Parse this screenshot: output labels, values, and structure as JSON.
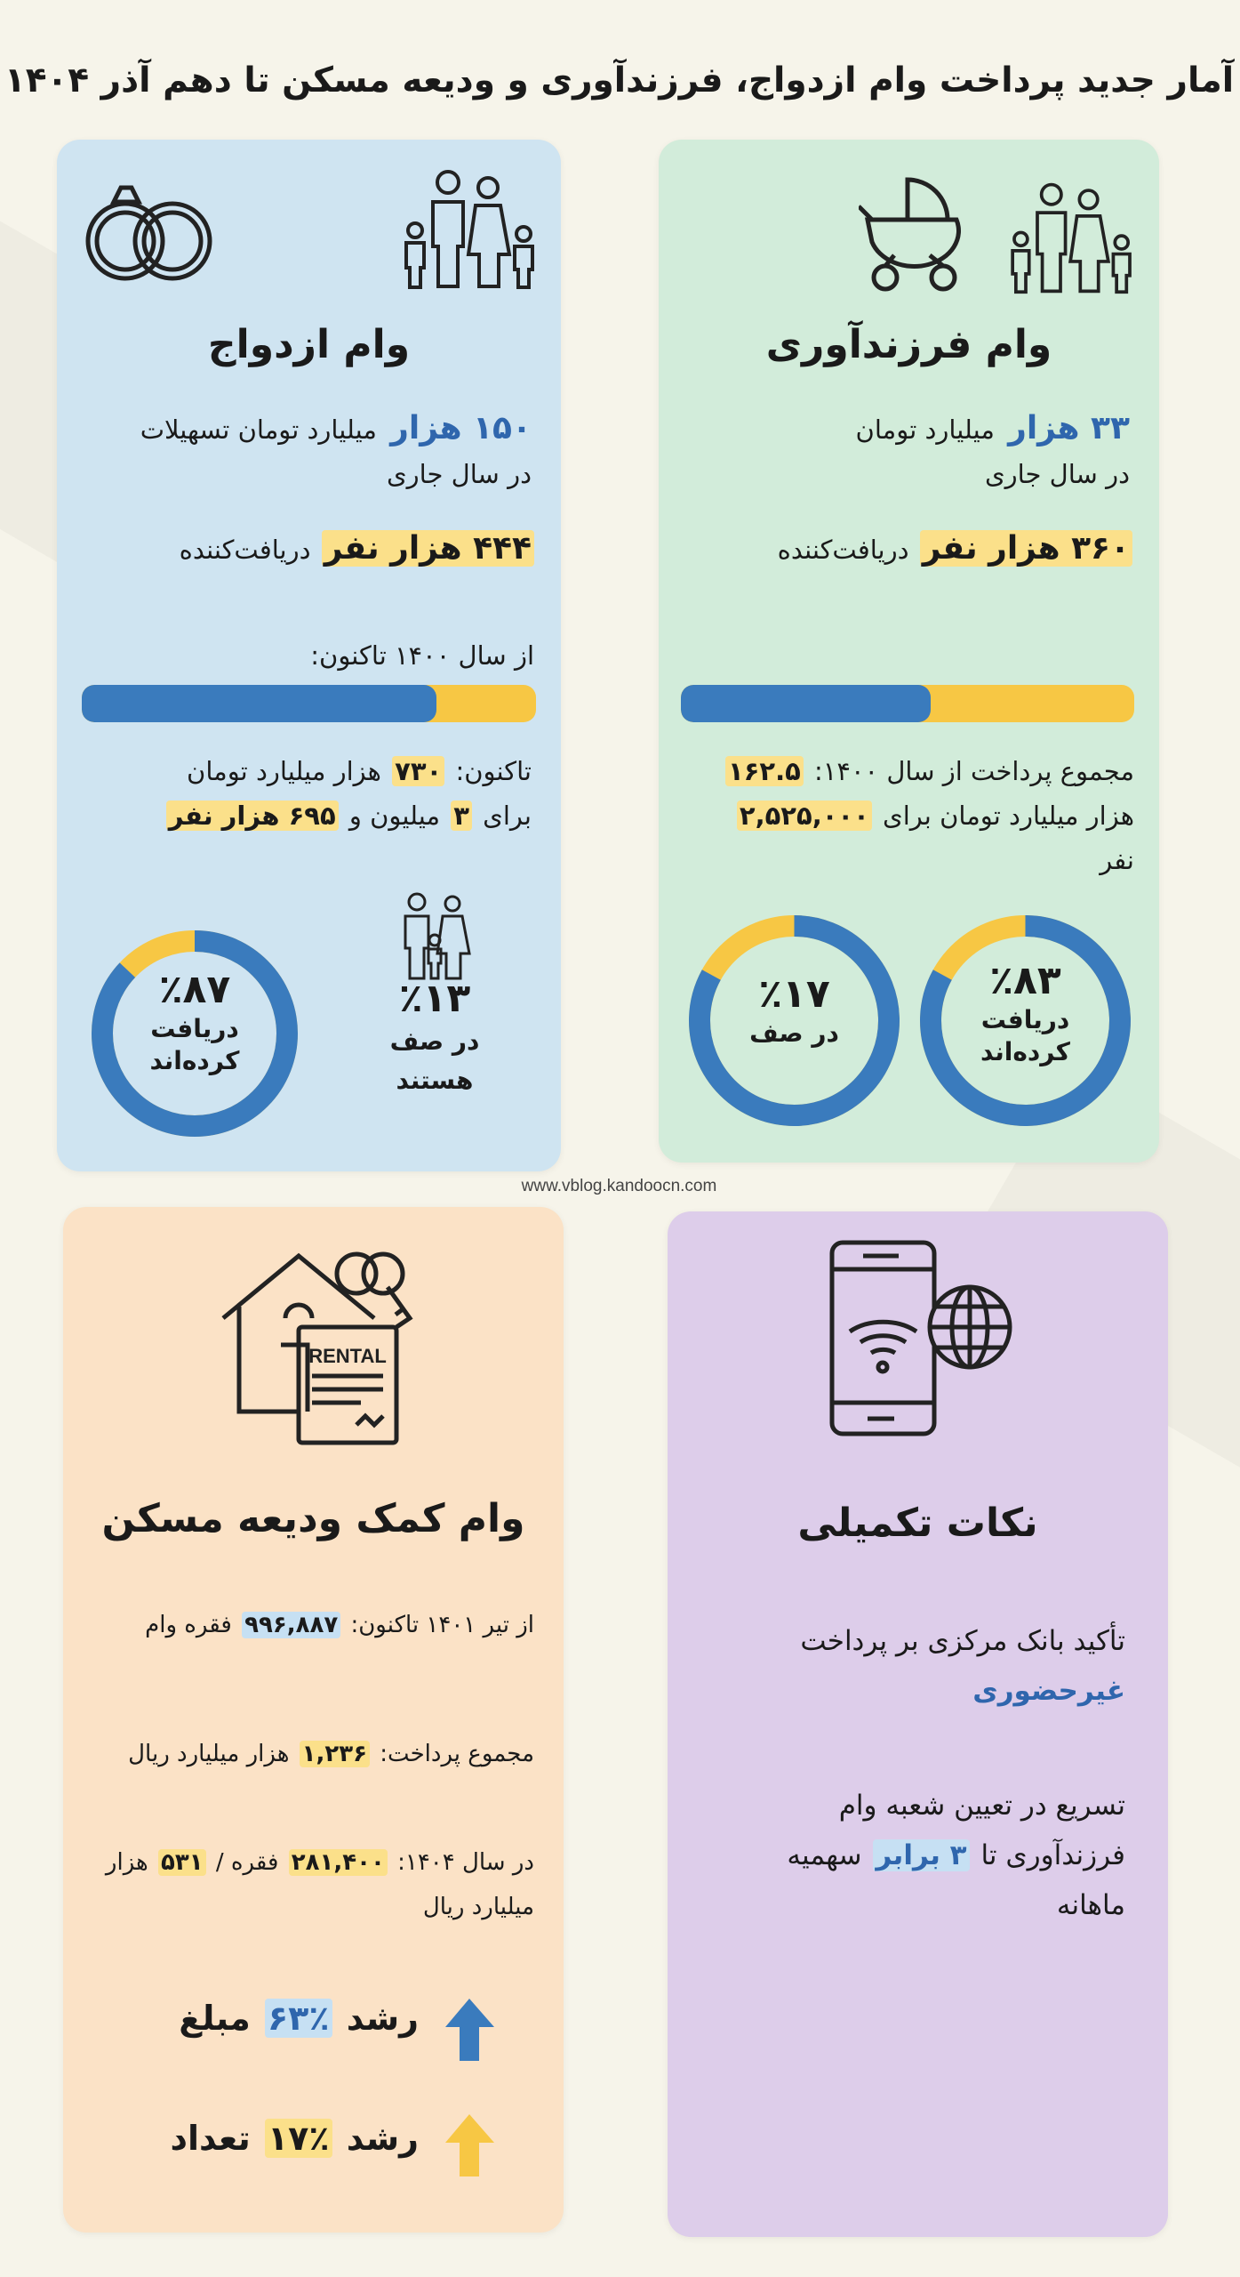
{
  "title": "آمار جدید پرداخت وام ازدواج، فرزندآوری و ودیعه مسکن تا دهم آذر ۱۴۰۴",
  "watermark": "www.vblog.kandoocn.com",
  "colors": {
    "background": "#f6f4ea",
    "marriage_card": "#cfe4f1",
    "childbearing_card": "#d2ecda",
    "housing_card": "#fbe2c6",
    "notes_card": "#ddcdea",
    "blue": "#3a7bbd",
    "yellow": "#f7c744",
    "text_blue": "#2f66ad"
  },
  "marriage": {
    "icons": [
      "wedding-rings-icon",
      "family-icon"
    ],
    "title": "وام ازدواج",
    "current_year": [
      [
        {
          "t": "۱۵۰ هزار",
          "c": "txt-blue big"
        },
        {
          "t": " میلیارد تومان تسهیلات"
        }
      ],
      [
        {
          "t": "در سال جاری"
        }
      ]
    ],
    "recipients": [
      [
        {
          "t": "۴۴۴ هزار نفر",
          "c": "hl-yellow big"
        },
        {
          "t": " دریافت‌کننده"
        }
      ]
    ],
    "since_label": "از سال ۱۴۰۰ تاکنون:",
    "progress_percent": 78,
    "total": [
      [
        {
          "t": "تاکنون: "
        },
        {
          "t": "۷۳۰",
          "c": "hl-yellow"
        },
        {
          "t": " هزار میلیارد تومان"
        }
      ],
      [
        {
          "t": "برای "
        },
        {
          "t": "۳",
          "c": "hl-yellow"
        },
        {
          "t": " میلیون و "
        },
        {
          "t": "۶۹۵ هزار نفر",
          "c": "hl-yellow"
        }
      ]
    ],
    "received": {
      "percent": 87,
      "value": "٪۸۷",
      "label1": "دریافت",
      "label2": "کرده‌اند"
    },
    "queue": {
      "percent": 13,
      "value": "٪۱۳",
      "label1": "در صف",
      "label2": "هستند"
    }
  },
  "childbearing": {
    "icons": [
      "stroller-icon",
      "family-icon"
    ],
    "title": "وام فرزندآوری",
    "current_year": [
      [
        {
          "t": "۳۳ هزار",
          "c": "txt-blue big"
        },
        {
          "t": " میلیارد تومان"
        }
      ],
      [
        {
          "t": "در سال جاری"
        }
      ]
    ],
    "recipients": [
      [
        {
          "t": "۳۶۰ هزار نفر",
          "c": "hl-yellow big"
        },
        {
          "t": " دریافت‌کننده"
        }
      ]
    ],
    "progress_percent": 55,
    "total": [
      [
        {
          "t": "مجموع پرداخت از سال ۱۴۰۰: "
        },
        {
          "t": "۱۶۲.۵",
          "c": "hl-yellow"
        }
      ],
      [
        {
          "t": "هزار میلیارد تومان برای "
        },
        {
          "t": "۲,۵۲۵,۰۰۰",
          "c": "hl-yellow"
        }
      ],
      [
        {
          "t": "نفر"
        }
      ]
    ],
    "received": {
      "percent": 83,
      "value": "٪۸۳",
      "label1": "دریافت",
      "label2": "کرده‌اند"
    },
    "queue": {
      "percent": 17,
      "value": "٪۱۷",
      "label1": "در صف"
    }
  },
  "housing": {
    "icon": "house-rental-key-icon",
    "icon_text": "RENTAL",
    "title": "وام کمک ودیعه مسکن",
    "since": [
      [
        {
          "t": "از تیر ۱۴۰۱ تاکنون: "
        },
        {
          "t": "۹۹۶,۸۸۷",
          "c": "hl-blue"
        },
        {
          "t": " فقره وام"
        }
      ]
    ],
    "total": [
      [
        {
          "t": "مجموع پرداخت: "
        },
        {
          "t": "۱,۲۳۶",
          "c": "hl-yellow"
        },
        {
          "t": " هزار میلیارد ریال"
        }
      ]
    ],
    "year_1404": [
      [
        {
          "t": "در سال ۱۴۰۴: "
        },
        {
          "t": "۲۸۱,۴۰۰",
          "c": "hl-yellow"
        },
        {
          "t": " فقره / "
        },
        {
          "t": "۵۳۱",
          "c": "hl-yellow"
        },
        {
          "t": " هزار"
        }
      ],
      [
        {
          "t": "میلیارد ریال"
        }
      ]
    ],
    "growth_amount": [
      [
        {
          "t": "رشد "
        },
        {
          "t": "٪۶۳",
          "c": "hl-blue txt-blue"
        },
        {
          "t": " مبلغ"
        }
      ]
    ],
    "growth_count": [
      [
        {
          "t": "رشد "
        },
        {
          "t": "٪۱۷",
          "c": "hl-yellow"
        },
        {
          "t": " تعداد"
        }
      ]
    ]
  },
  "notes": {
    "icon": "smartphone-wifi-globe-icon",
    "title": "نکات تکمیلی",
    "note1": [
      [
        {
          "t": "تأکید بانک مرکزی بر پرداخت"
        }
      ],
      [
        {
          "t": "غیرحضوری",
          "c": "txt-blue"
        }
      ]
    ],
    "note2": [
      [
        {
          "t": "تسریع در تعیین شعبه وام"
        }
      ],
      [
        {
          "t": "فرزندآوری تا "
        },
        {
          "t": "۳ برابر",
          "c": "hl-blue txt-blue"
        },
        {
          "t": " سهمیه"
        }
      ],
      [
        {
          "t": "ماهانه"
        }
      ]
    ]
  }
}
